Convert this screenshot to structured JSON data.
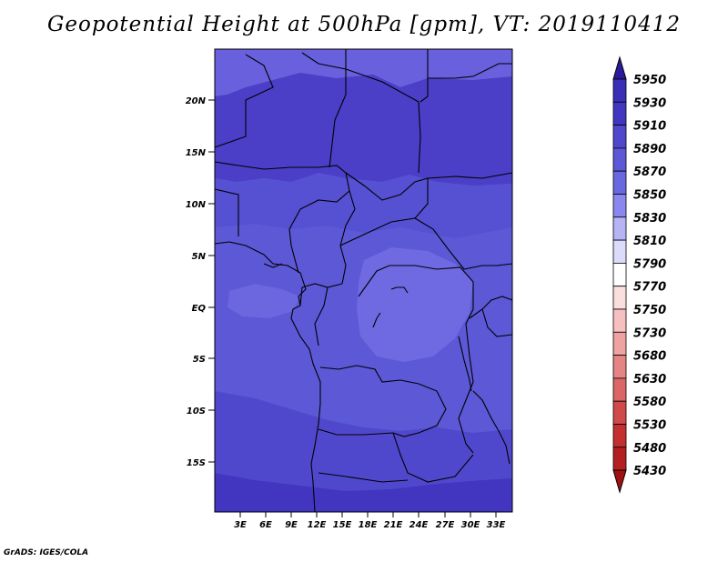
{
  "title": "Geopotential Height at 500hPa [gpm], VT: 2019110412",
  "credit": "GrADS: IGES/COLA",
  "map": {
    "lon_range": [
      0,
      35
    ],
    "lat_range": [
      -20,
      24.3
    ],
    "lat_ticks": [
      "20N",
      "15N",
      "10N",
      "5N",
      "EQ",
      "5S",
      "10S",
      "15S"
    ],
    "lat_values": [
      20,
      15,
      10,
      5,
      0,
      -5,
      -10,
      -15
    ],
    "lon_ticks": [
      "3E",
      "6E",
      "9E",
      "12E",
      "15E",
      "18E",
      "21E",
      "24E",
      "27E",
      "30E",
      "33E"
    ],
    "lon_values": [
      3,
      6,
      9,
      12,
      15,
      18,
      21,
      24,
      27,
      30,
      33
    ],
    "dominant_band_color": "#5c58d6"
  },
  "colorbar": {
    "levels": [
      "5950",
      "5930",
      "5910",
      "5890",
      "5870",
      "5850",
      "5830",
      "5810",
      "5790",
      "5770",
      "5750",
      "5730",
      "5680",
      "5630",
      "5580",
      "5530",
      "5480",
      "5430"
    ],
    "colors": [
      "#2c1a9e",
      "#3a2eb6",
      "#4236c0",
      "#5048cc",
      "#5c58d6",
      "#6a68e0",
      "#8a88ee",
      "#b6b4f4",
      "#dcdcfa",
      "#ffffff",
      "#fbdede",
      "#f6c0c0",
      "#eea2a2",
      "#e48484",
      "#da6666",
      "#d04a4a",
      "#c43030",
      "#b42020",
      "#a01010"
    ]
  }
}
